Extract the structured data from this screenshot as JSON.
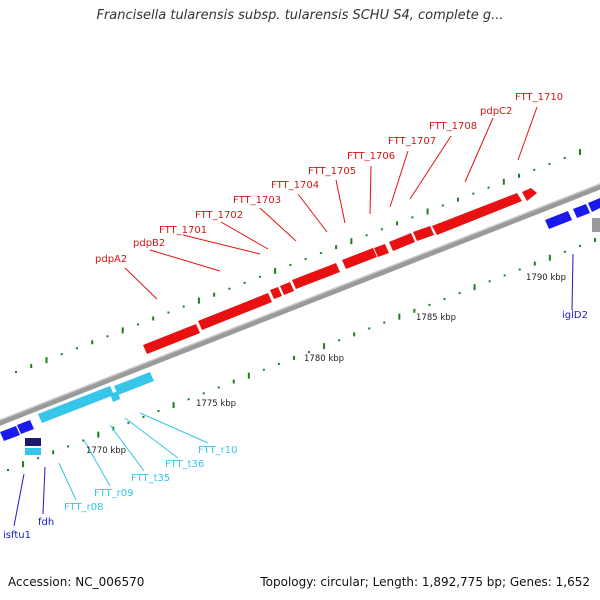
{
  "header": {
    "title": "Francisella tularensis subsp. tularensis SCHU S4, complete g..."
  },
  "footer": {
    "accession": "Accession: NC_006570",
    "summary": "Topology: circular; Length: 1,892,775 bp; Genes: 1,652"
  },
  "colors": {
    "forward_gene": "#e81010",
    "reverse_gene": "#1a1aee",
    "rna_gene": "#35c6ea",
    "backbone": "#9a9a9a",
    "gc_tick": "#1e7d1e"
  },
  "scale_ticks": [
    "1770 kbp",
    "1775 kbp",
    "1780 kbp",
    "1785 kbp",
    "1790 kbp"
  ],
  "forward_labels": [
    "pdpA2",
    "pdpB2",
    "FTT_1701",
    "FTT_1702",
    "FTT_1703",
    "FTT_1704",
    "FTT_1705",
    "FTT_1706",
    "FTT_1707",
    "FTT_1708",
    "pdpC2",
    "FTT_1710"
  ],
  "reverse_labels": [
    "isftu1",
    "fdh",
    "iglD2"
  ],
  "rna_labels": [
    "FTT_r08",
    "FTT_r09",
    "FTT_t35",
    "FTT_t36",
    "FTT_r10"
  ]
}
